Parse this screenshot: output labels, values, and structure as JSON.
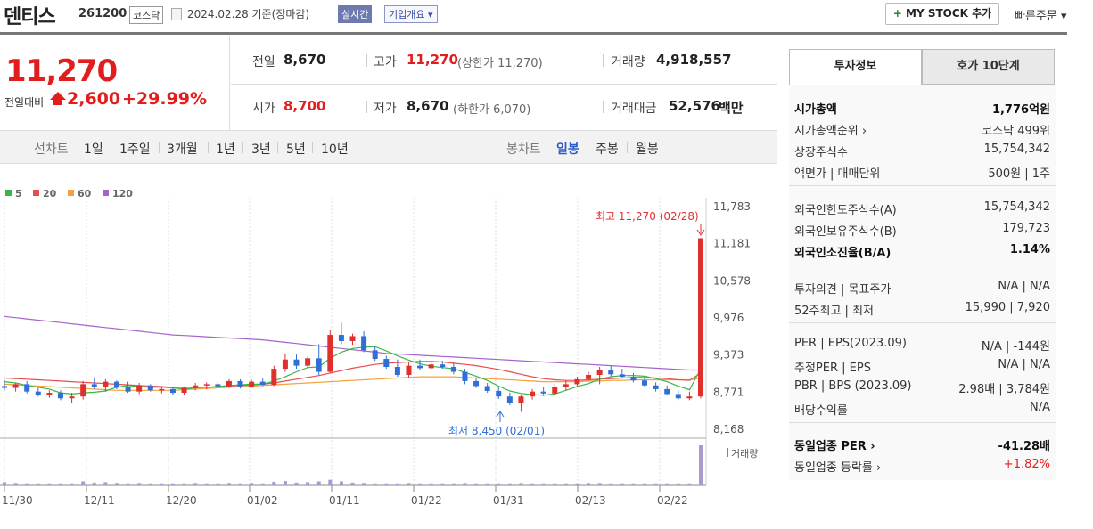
{
  "header": {
    "stock_name": "덴티스",
    "stock_code": "261200",
    "market": "코스닥",
    "date_text": "2024.02.28 기준(장마감)",
    "realtime_label": "실시간",
    "company_label": "기업개요 ▾",
    "mystock_label": "MY STOCK 추가",
    "mystock_plus": "+",
    "quick_order": "빠른주문 ▾"
  },
  "price": {
    "current": "11,270",
    "change_label": "전일대비",
    "change": "2,600",
    "rate": "+29.99%"
  },
  "quote": {
    "prev_label": "전일",
    "prev": "8,670",
    "high_label": "고가",
    "high": "11,270",
    "high_note": "(상한가 11,270)",
    "volume_label": "거래량",
    "volume": "4,918,557",
    "open_label": "시가",
    "open": "8,700",
    "low_label": "저가",
    "low": "8,670",
    "low_note": "(하한가 6,070)",
    "amount_label": "거래대금",
    "amount": "52,576",
    "amount_unit": "백만"
  },
  "ranges": {
    "line_label": "선차트",
    "line_items": [
      "1일",
      "1주일",
      "3개월",
      "1년",
      "3년",
      "5년",
      "10년"
    ],
    "candle_label": "봉차트",
    "candle_items": [
      "일봉",
      "주봉",
      "월봉"
    ],
    "active_candle": "일봉"
  },
  "chart_data": {
    "type": "candlestick",
    "ma_legend": [
      {
        "name": "5",
        "color": "#39b54a"
      },
      {
        "name": "20",
        "color": "#e84c4c"
      },
      {
        "name": "60",
        "color": "#f5a03a"
      },
      {
        "name": "120",
        "color": "#a663cc"
      }
    ],
    "y_ticks": [
      "11,783",
      "11,181",
      "10,578",
      "9,976",
      "9,373",
      "8,771",
      "8,168"
    ],
    "x_ticks": [
      "11/30",
      "12/11",
      "12/20",
      "01/02",
      "01/11",
      "01/22",
      "01/31",
      "02/13",
      "02/22"
    ],
    "ylim": [
      8168,
      11783
    ],
    "high_annotation": "최고 11,270 (02/28)",
    "low_annotation": "최저 8,450 (02/01)",
    "volume_label": "거래량",
    "candles": [
      [
        8870,
        8960,
        8800,
        8840
      ],
      [
        8840,
        8920,
        8780,
        8900
      ],
      [
        8900,
        8950,
        8750,
        8780
      ],
      [
        8780,
        8840,
        8700,
        8720
      ],
      [
        8720,
        8800,
        8680,
        8760
      ],
      [
        8760,
        8800,
        8640,
        8670
      ],
      [
        8670,
        8760,
        8600,
        8700
      ],
      [
        8700,
        8950,
        8650,
        8900
      ],
      [
        8900,
        9010,
        8820,
        8850
      ],
      [
        8850,
        8980,
        8780,
        8940
      ],
      [
        8940,
        8960,
        8820,
        8850
      ],
      [
        8850,
        8940,
        8760,
        8780
      ],
      [
        8780,
        8920,
        8740,
        8880
      ],
      [
        8880,
        8900,
        8780,
        8800
      ],
      [
        8800,
        8870,
        8750,
        8820
      ],
      [
        8820,
        8850,
        8720,
        8760
      ],
      [
        8760,
        8860,
        8730,
        8840
      ],
      [
        8840,
        8920,
        8800,
        8880
      ],
      [
        8880,
        8930,
        8820,
        8900
      ],
      [
        8900,
        8940,
        8840,
        8870
      ],
      [
        8870,
        8980,
        8840,
        8950
      ],
      [
        8950,
        8980,
        8830,
        8860
      ],
      [
        8860,
        8970,
        8840,
        8940
      ],
      [
        8940,
        8990,
        8870,
        8890
      ],
      [
        8890,
        9200,
        8870,
        9150
      ],
      [
        9150,
        9400,
        9100,
        9300
      ],
      [
        9300,
        9380,
        9150,
        9200
      ],
      [
        9200,
        9350,
        9170,
        9320
      ],
      [
        9320,
        9550,
        9050,
        9100
      ],
      [
        9100,
        9780,
        9080,
        9700
      ],
      [
        9700,
        9900,
        9550,
        9600
      ],
      [
        9600,
        9720,
        9540,
        9680
      ],
      [
        9680,
        9760,
        9420,
        9450
      ],
      [
        9450,
        9520,
        9280,
        9310
      ],
      [
        9310,
        9360,
        9150,
        9180
      ],
      [
        9180,
        9300,
        9020,
        9050
      ],
      [
        9050,
        9250,
        9010,
        9200
      ],
      [
        9200,
        9300,
        9130,
        9160
      ],
      [
        9160,
        9250,
        9120,
        9220
      ],
      [
        9220,
        9280,
        9150,
        9180
      ],
      [
        9180,
        9250,
        9060,
        9100
      ],
      [
        9100,
        9150,
        8900,
        8950
      ],
      [
        8950,
        9000,
        8840,
        8870
      ],
      [
        8870,
        8920,
        8760,
        8790
      ],
      [
        8790,
        8850,
        8660,
        8700
      ],
      [
        8700,
        8760,
        8560,
        8600
      ],
      [
        8600,
        8720,
        8450,
        8700
      ],
      [
        8700,
        8820,
        8650,
        8780
      ],
      [
        8780,
        8860,
        8710,
        8750
      ],
      [
        8750,
        8900,
        8720,
        8850
      ],
      [
        8850,
        8960,
        8800,
        8900
      ],
      [
        8900,
        9020,
        8850,
        8980
      ],
      [
        8980,
        9100,
        8950,
        9050
      ],
      [
        9050,
        9180,
        8900,
        9130
      ],
      [
        9130,
        9200,
        9020,
        9060
      ],
      [
        9060,
        9150,
        9000,
        9020
      ],
      [
        9020,
        9080,
        8930,
        8960
      ],
      [
        8960,
        9010,
        8860,
        8880
      ],
      [
        8880,
        8930,
        8780,
        8820
      ],
      [
        8820,
        8880,
        8720,
        8740
      ],
      [
        8740,
        8800,
        8640,
        8670
      ],
      [
        8670,
        8780,
        8640,
        8700
      ],
      [
        8700,
        11270,
        8670,
        11270
      ]
    ],
    "volumes": [
      0.08,
      0.06,
      0.05,
      0.05,
      0.05,
      0.05,
      0.05,
      0.1,
      0.07,
      0.08,
      0.06,
      0.05,
      0.06,
      0.05,
      0.05,
      0.05,
      0.05,
      0.06,
      0.05,
      0.05,
      0.06,
      0.05,
      0.06,
      0.05,
      0.09,
      0.11,
      0.07,
      0.08,
      0.1,
      0.14,
      0.1,
      0.07,
      0.06,
      0.05,
      0.05,
      0.05,
      0.06,
      0.05,
      0.05,
      0.05,
      0.05,
      0.06,
      0.05,
      0.05,
      0.05,
      0.05,
      0.06,
      0.05,
      0.05,
      0.05,
      0.05,
      0.05,
      0.06,
      0.06,
      0.05,
      0.05,
      0.05,
      0.05,
      0.05,
      0.05,
      0.05,
      0.05,
      1.0
    ],
    "ma5": [
      8940,
      8920,
      8880,
      8850,
      8820,
      8760,
      8740,
      8760,
      8770,
      8790,
      8850,
      8880,
      8860,
      8850,
      8850,
      8840,
      8820,
      8840,
      8850,
      8860,
      8880,
      8890,
      8900,
      8900,
      8950,
      9020,
      9100,
      9170,
      9180,
      9320,
      9420,
      9480,
      9500,
      9510,
      9440,
      9360,
      9290,
      9230,
      9190,
      9170,
      9150,
      9090,
      9030,
      8960,
      8870,
      8790,
      8750,
      8730,
      8720,
      8740,
      8800,
      8860,
      8910,
      8980,
      9020,
      9040,
      9040,
      9030,
      8990,
      8940,
      8870,
      8810,
      9150
    ],
    "ma20": [
      9000,
      8990,
      8980,
      8970,
      8960,
      8950,
      8940,
      8930,
      8920,
      8910,
      8900,
      8890,
      8880,
      8870,
      8860,
      8850,
      8850,
      8850,
      8850,
      8860,
      8870,
      8880,
      8890,
      8900,
      8920,
      8950,
      8980,
      9010,
      9040,
      9080,
      9120,
      9160,
      9190,
      9220,
      9240,
      9250,
      9260,
      9270,
      9270,
      9260,
      9240,
      9220,
      9200,
      9170,
      9140,
      9100,
      9060,
      9020,
      8990,
      8970,
      8960,
      8960,
      8970,
      8980,
      8990,
      9000,
      9010,
      9010,
      9000,
      8990,
      8970,
      8960,
      9080
    ],
    "ma60": [
      8900,
      8890,
      8880,
      8870,
      8860,
      8850,
      8840,
      8830,
      8820,
      8810,
      8800,
      8800,
      8800,
      8800,
      8800,
      8800,
      8810,
      8820,
      8830,
      8840,
      8850,
      8860,
      8870,
      8880,
      8890,
      8900,
      8910,
      8920,
      8930,
      8940,
      8950,
      8960,
      8970,
      8980,
      8990,
      9000,
      9010,
      9020,
      9020,
      9020,
      9020,
      9010,
      9000,
      8990,
      8980,
      8970,
      8960,
      8950,
      8940,
      8940,
      8940,
      8940,
      8950,
      8950,
      8960,
      8960,
      8970,
      8970,
      8970,
      8970,
      8970,
      8970,
      9000
    ],
    "ma120": [
      10000,
      9980,
      9960,
      9940,
      9920,
      9900,
      9880,
      9860,
      9840,
      9820,
      9800,
      9780,
      9760,
      9740,
      9720,
      9700,
      9690,
      9680,
      9670,
      9660,
      9650,
      9640,
      9630,
      9620,
      9600,
      9580,
      9560,
      9540,
      9520,
      9500,
      9480,
      9460,
      9440,
      9420,
      9400,
      9390,
      9380,
      9370,
      9360,
      9350,
      9340,
      9330,
      9320,
      9310,
      9300,
      9290,
      9280,
      9270,
      9260,
      9250,
      9240,
      9230,
      9220,
      9210,
      9200,
      9190,
      9180,
      9170,
      9160,
      9150,
      9140,
      9130,
      9130
    ]
  },
  "invest": {
    "tab_invest": "투자정보",
    "tab_hoga": "호가 10단계",
    "rows": [
      {
        "l": "시가총액",
        "r": "1,776억원",
        "bold": true
      },
      {
        "l": "시가총액순위 ›",
        "r": "코스닥 499위"
      },
      {
        "l": "상장주식수",
        "r": "15,754,342"
      },
      {
        "l": "액면가 | 매매단위",
        "r": "500원 | 1주"
      },
      {
        "l": "외국인한도주식수(A)",
        "r": "15,754,342"
      },
      {
        "l": "외국인보유주식수(B)",
        "r": "179,723"
      },
      {
        "l": "외국인소진율(B/A)",
        "r": "1.14%",
        "bold": true
      },
      {
        "l": "투자의견 | 목표주가",
        "r": "N/A | N/A"
      },
      {
        "l": "52주최고 | 최저",
        "r": "15,990 | 7,920"
      },
      {
        "l": "PER | EPS(2023.09)",
        "r": "N/A | -144원"
      },
      {
        "l": "추정PER | EPS",
        "r": "N/A | N/A"
      },
      {
        "l": "PBR | BPS (2023.09)",
        "r": "2.98배 | 3,784원"
      },
      {
        "l": "배당수익률",
        "r": "N/A"
      },
      {
        "l": "동일업종 PER ›",
        "r": "-41.28배",
        "bold": true
      },
      {
        "l": "동일업종 등락률 ›",
        "r": "+1.82%",
        "red": true
      }
    ]
  }
}
